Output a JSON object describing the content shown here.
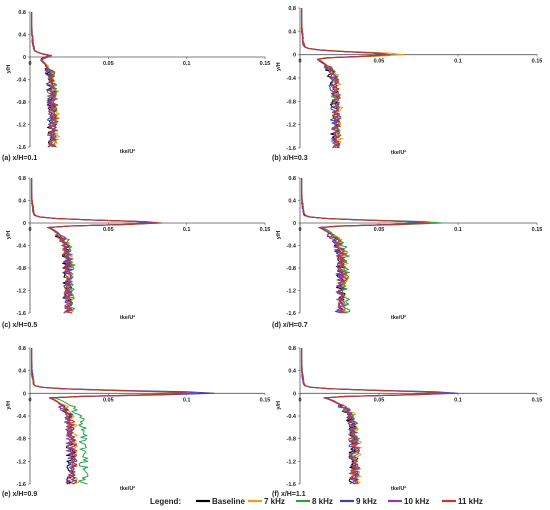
{
  "chart_data": [
    {
      "type": "line",
      "caption": "(a) x/H=0.1",
      "xlabel": "tke/U²",
      "ylabel": "y/H",
      "xlim": [
        0,
        0.15
      ],
      "ylim": [
        -1.6,
        0.8
      ],
      "xticks": [
        "0",
        "0.05",
        "0.1",
        "0.15"
      ],
      "yticks": [
        "0.8",
        "0.4",
        "0",
        "-0.4",
        "-0.8",
        "-1.2",
        "-1.6"
      ],
      "peak_y": 0,
      "series_peaks": [
        {
          "name": "Baseline",
          "peak_tke": 0.01,
          "lower_tke": 0.01
        },
        {
          "name": "7 kHz",
          "peak_tke": 0.011,
          "lower_tke": 0.012
        },
        {
          "name": "8 kHz",
          "peak_tke": 0.011,
          "lower_tke": 0.011
        },
        {
          "name": "9 kHz",
          "peak_tke": 0.01,
          "lower_tke": 0.01
        },
        {
          "name": "10 kHz",
          "peak_tke": 0.012,
          "lower_tke": 0.01
        },
        {
          "name": "11 kHz",
          "peak_tke": 0.011,
          "lower_tke": 0.011
        }
      ]
    },
    {
      "type": "line",
      "caption": "(b) x/H=0.3",
      "xlabel": "tke/U²",
      "ylabel": "y/H",
      "xlim": [
        0,
        0.15
      ],
      "ylim": [
        -1.6,
        0.8
      ],
      "xticks": [
        "0",
        "0.05",
        "0.1",
        "0.15"
      ],
      "yticks": [
        "0.8",
        "0.4",
        "0",
        "-0.4",
        "-0.8",
        "-1.2",
        "-1.6"
      ],
      "peak_y": 0,
      "series_peaks": [
        {
          "name": "Baseline",
          "peak_tke": 0.055,
          "lower_tke": 0.018
        },
        {
          "name": "7 kHz",
          "peak_tke": 0.065,
          "lower_tke": 0.02
        },
        {
          "name": "8 kHz",
          "peak_tke": 0.057,
          "lower_tke": 0.019
        },
        {
          "name": "9 kHz",
          "peak_tke": 0.052,
          "lower_tke": 0.018
        },
        {
          "name": "10 kHz",
          "peak_tke": 0.054,
          "lower_tke": 0.019
        },
        {
          "name": "11 kHz",
          "peak_tke": 0.057,
          "lower_tke": 0.019
        }
      ]
    },
    {
      "type": "line",
      "caption": "(c) x/H=0.5",
      "xlabel": "tke/U²",
      "ylabel": "y/H",
      "xlim": [
        0,
        0.15
      ],
      "ylim": [
        -1.6,
        0.8
      ],
      "xticks": [
        "0",
        "0.05",
        "0.1",
        "0.15"
      ],
      "yticks": [
        "0.8",
        "0.4",
        "0",
        "-0.4",
        "-0.8",
        "-1.2",
        "-1.6"
      ],
      "peak_y": 0,
      "series_peaks": [
        {
          "name": "Baseline",
          "peak_tke": 0.08,
          "lower_tke": 0.02
        },
        {
          "name": "7 kHz",
          "peak_tke": 0.078,
          "lower_tke": 0.021
        },
        {
          "name": "8 kHz",
          "peak_tke": 0.079,
          "lower_tke": 0.022
        },
        {
          "name": "9 kHz",
          "peak_tke": 0.077,
          "lower_tke": 0.02
        },
        {
          "name": "10 kHz",
          "peak_tke": 0.082,
          "lower_tke": 0.021
        },
        {
          "name": "11 kHz",
          "peak_tke": 0.084,
          "lower_tke": 0.02
        }
      ]
    },
    {
      "type": "line",
      "caption": "(d) x/H=0.7",
      "xlabel": "tke/U²",
      "ylabel": "y/H",
      "xlim": [
        0,
        0.15
      ],
      "ylim": [
        -1.6,
        0.8
      ],
      "xticks": [
        "0",
        "0.05",
        "0.1",
        "0.15"
      ],
      "yticks": [
        "0.8",
        "0.4",
        "0",
        "-0.4",
        "-0.8",
        "-1.2",
        "-1.6"
      ],
      "peak_y": 0,
      "series_peaks": [
        {
          "name": "Baseline",
          "peak_tke": 0.078,
          "lower_tke": 0.022
        },
        {
          "name": "7 kHz",
          "peak_tke": 0.085,
          "lower_tke": 0.024
        },
        {
          "name": "8 kHz",
          "peak_tke": 0.09,
          "lower_tke": 0.025
        },
        {
          "name": "9 kHz",
          "peak_tke": 0.076,
          "lower_tke": 0.021
        },
        {
          "name": "10 kHz",
          "peak_tke": 0.08,
          "lower_tke": 0.022
        },
        {
          "name": "11 kHz",
          "peak_tke": 0.082,
          "lower_tke": 0.023
        }
      ]
    },
    {
      "type": "line",
      "caption": "(e) x/H=0.9",
      "xlabel": "tke/U²",
      "ylabel": "y/H",
      "xlim": [
        0,
        0.15
      ],
      "ylim": [
        -1.6,
        0.8
      ],
      "xticks": [
        "0",
        "0.05",
        "0.1",
        "0.15"
      ],
      "yticks": [
        "0.8",
        "0.4",
        "0",
        "-0.4",
        "-0.8",
        "-1.2",
        "-1.6"
      ],
      "peak_y": 0,
      "series_peaks": [
        {
          "name": "Baseline",
          "peak_tke": 0.1,
          "lower_tke": 0.022
        },
        {
          "name": "7 kHz",
          "peak_tke": 0.095,
          "lower_tke": 0.024
        },
        {
          "name": "8 kHz",
          "peak_tke": 0.098,
          "lower_tke": 0.03
        },
        {
          "name": "9 kHz",
          "peak_tke": 0.118,
          "lower_tke": 0.023
        },
        {
          "name": "10 kHz",
          "peak_tke": 0.105,
          "lower_tke": 0.022
        },
        {
          "name": "11 kHz",
          "peak_tke": 0.102,
          "lower_tke": 0.023
        }
      ]
    },
    {
      "type": "line",
      "caption": "(f) x/H=1.1",
      "xlabel": "tke/U²",
      "ylabel": "y/H",
      "xlim": [
        0,
        0.15
      ],
      "ylim": [
        -1.6,
        0.8
      ],
      "xticks": [
        "0",
        "0.05",
        "0.1",
        "0.15"
      ],
      "yticks": [
        "0.8",
        "0.4",
        "0",
        "-0.4",
        "-0.8",
        "-1.2",
        "-1.6"
      ],
      "peak_y": 0,
      "series_peaks": [
        {
          "name": "Baseline",
          "peak_tke": 0.09,
          "lower_tke": 0.03
        },
        {
          "name": "7 kHz",
          "peak_tke": 0.092,
          "lower_tke": 0.032
        },
        {
          "name": "8 kHz",
          "peak_tke": 0.088,
          "lower_tke": 0.031
        },
        {
          "name": "9 kHz",
          "peak_tke": 0.1,
          "lower_tke": 0.03
        },
        {
          "name": "10 kHz",
          "peak_tke": 0.095,
          "lower_tke": 0.031
        },
        {
          "name": "11 kHz",
          "peak_tke": 0.091,
          "lower_tke": 0.03
        }
      ]
    }
  ],
  "legend": {
    "title": "Legend:",
    "items": [
      {
        "name": "Baseline",
        "color": "#000000"
      },
      {
        "name": "7 kHz",
        "color": "#f39c12"
      },
      {
        "name": "8 kHz",
        "color": "#27a04a"
      },
      {
        "name": "9 kHz",
        "color": "#3b3fb5"
      },
      {
        "name": "10 kHz",
        "color": "#8e3bb5"
      },
      {
        "name": "11 kHz",
        "color": "#c0392b"
      }
    ]
  }
}
